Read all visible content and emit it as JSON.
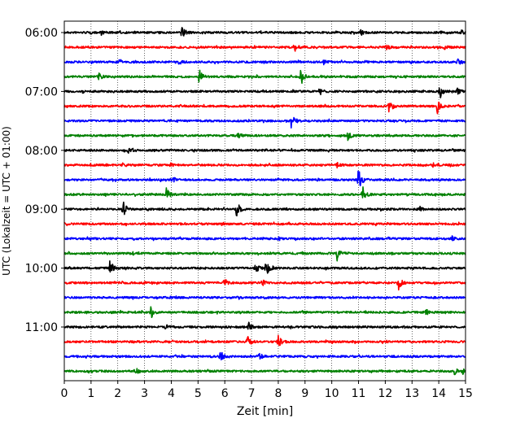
{
  "chart_data": {
    "type": "line",
    "title": "",
    "xlabel": "Zeit  [min]",
    "ylabel": "UTC (Lokalzeit = UTC + 01:00)",
    "xlim": [
      0,
      15
    ],
    "x_ticks": [
      "0",
      "1",
      "2",
      "3",
      "4",
      "5",
      "6",
      "7",
      "8",
      "9",
      "10",
      "11",
      "12",
      "13",
      "14",
      "15"
    ],
    "y_tick_labels": [
      "06:00",
      "07:00",
      "08:00",
      "09:00",
      "10:00",
      "11:00"
    ],
    "grid": "vertical dotted lines at each minute",
    "colors": [
      "#000000",
      "#ff0000",
      "#0000ff",
      "#008000"
    ],
    "traces": [
      {
        "start": "06:00",
        "color": "#000000"
      },
      {
        "start": "06:15",
        "color": "#ff0000"
      },
      {
        "start": "06:30",
        "color": "#0000ff"
      },
      {
        "start": "06:45",
        "color": "#008000"
      },
      {
        "start": "07:00",
        "color": "#000000"
      },
      {
        "start": "07:15",
        "color": "#ff0000"
      },
      {
        "start": "07:30",
        "color": "#0000ff"
      },
      {
        "start": "07:45",
        "color": "#008000"
      },
      {
        "start": "08:00",
        "color": "#000000"
      },
      {
        "start": "08:15",
        "color": "#ff0000"
      },
      {
        "start": "08:30",
        "color": "#0000ff"
      },
      {
        "start": "08:45",
        "color": "#008000"
      },
      {
        "start": "09:00",
        "color": "#000000"
      },
      {
        "start": "09:15",
        "color": "#ff0000"
      },
      {
        "start": "09:30",
        "color": "#0000ff"
      },
      {
        "start": "09:45",
        "color": "#008000"
      },
      {
        "start": "10:00",
        "color": "#000000"
      },
      {
        "start": "10:15",
        "color": "#ff0000"
      },
      {
        "start": "10:30",
        "color": "#0000ff"
      },
      {
        "start": "10:45",
        "color": "#008000"
      },
      {
        "start": "11:00",
        "color": "#000000"
      },
      {
        "start": "11:15",
        "color": "#ff0000"
      },
      {
        "start": "11:30",
        "color": "#0000ff"
      },
      {
        "start": "11:45",
        "color": "#008000"
      }
    ],
    "events": [
      [
        {
          "t": 1.35,
          "a": 0.35
        },
        {
          "t": 4.4,
          "a": 1.0
        },
        {
          "t": 11.1,
          "a": 0.35
        },
        {
          "t": 13.95,
          "a": 0.3
        },
        {
          "t": 14.85,
          "a": 0.25
        }
      ],
      [
        {
          "t": 8.6,
          "a": 0.6
        },
        {
          "t": 12.05,
          "a": 0.3
        },
        {
          "t": 14.2,
          "a": 0.3
        }
      ],
      [
        {
          "t": 2.0,
          "a": 0.3
        },
        {
          "t": 4.3,
          "a": 0.25
        },
        {
          "t": 9.7,
          "a": 0.3
        },
        {
          "t": 14.7,
          "a": 0.7
        }
      ],
      [
        {
          "t": 1.3,
          "a": 0.4
        },
        {
          "t": 5.05,
          "a": 0.9
        },
        {
          "t": 8.85,
          "a": 1.2
        }
      ],
      [
        {
          "t": 9.55,
          "a": 0.5
        },
        {
          "t": 14.05,
          "a": 0.9
        },
        {
          "t": 14.7,
          "a": 0.6
        }
      ],
      [
        {
          "t": 12.15,
          "a": 1.0
        },
        {
          "t": 13.95,
          "a": 0.9
        }
      ],
      [
        {
          "t": 8.5,
          "a": 1.2
        }
      ],
      [
        {
          "t": 6.5,
          "a": 0.3
        },
        {
          "t": 10.6,
          "a": 0.8
        }
      ],
      [
        {
          "t": 2.4,
          "a": 0.3
        }
      ],
      [
        {
          "t": 2.2,
          "a": 0.25
        },
        {
          "t": 4.0,
          "a": 0.25
        },
        {
          "t": 10.2,
          "a": 0.25
        },
        {
          "t": 13.8,
          "a": 0.25
        }
      ],
      [
        {
          "t": 4.0,
          "a": 0.5
        },
        {
          "t": 11.0,
          "a": 1.7
        }
      ],
      [
        {
          "t": 3.8,
          "a": 1.0
        },
        {
          "t": 11.15,
          "a": 1.0
        }
      ],
      [
        {
          "t": 2.2,
          "a": 1.2
        },
        {
          "t": 6.45,
          "a": 1.0
        },
        {
          "t": 13.3,
          "a": 0.3
        }
      ],
      [
        {
          "t": 7.0,
          "a": 0.2
        }
      ],
      [
        {
          "t": 8.0,
          "a": 0.2
        },
        {
          "t": 14.5,
          "a": 0.25
        }
      ],
      [
        {
          "t": 10.2,
          "a": 0.9
        }
      ],
      [
        {
          "t": 1.7,
          "a": 1.2
        },
        {
          "t": 7.15,
          "a": 0.7
        },
        {
          "t": 7.55,
          "a": 1.0
        }
      ],
      [
        {
          "t": 6.0,
          "a": 0.5
        },
        {
          "t": 7.4,
          "a": 0.5
        },
        {
          "t": 12.5,
          "a": 0.9
        }
      ],
      [
        {
          "t": 6.5,
          "a": 0.2
        }
      ],
      [
        {
          "t": 3.25,
          "a": 0.9
        },
        {
          "t": 13.55,
          "a": 0.4
        }
      ],
      [
        {
          "t": 3.8,
          "a": 0.3
        },
        {
          "t": 6.9,
          "a": 0.6
        }
      ],
      [
        {
          "t": 6.85,
          "a": 0.8
        },
        {
          "t": 8.0,
          "a": 0.9
        }
      ],
      [
        {
          "t": 5.85,
          "a": 0.8
        },
        {
          "t": 7.3,
          "a": 0.4
        }
      ],
      [
        {
          "t": 2.7,
          "a": 0.3
        },
        {
          "t": 14.6,
          "a": 0.5
        },
        {
          "t": 14.9,
          "a": 0.4
        }
      ]
    ]
  }
}
